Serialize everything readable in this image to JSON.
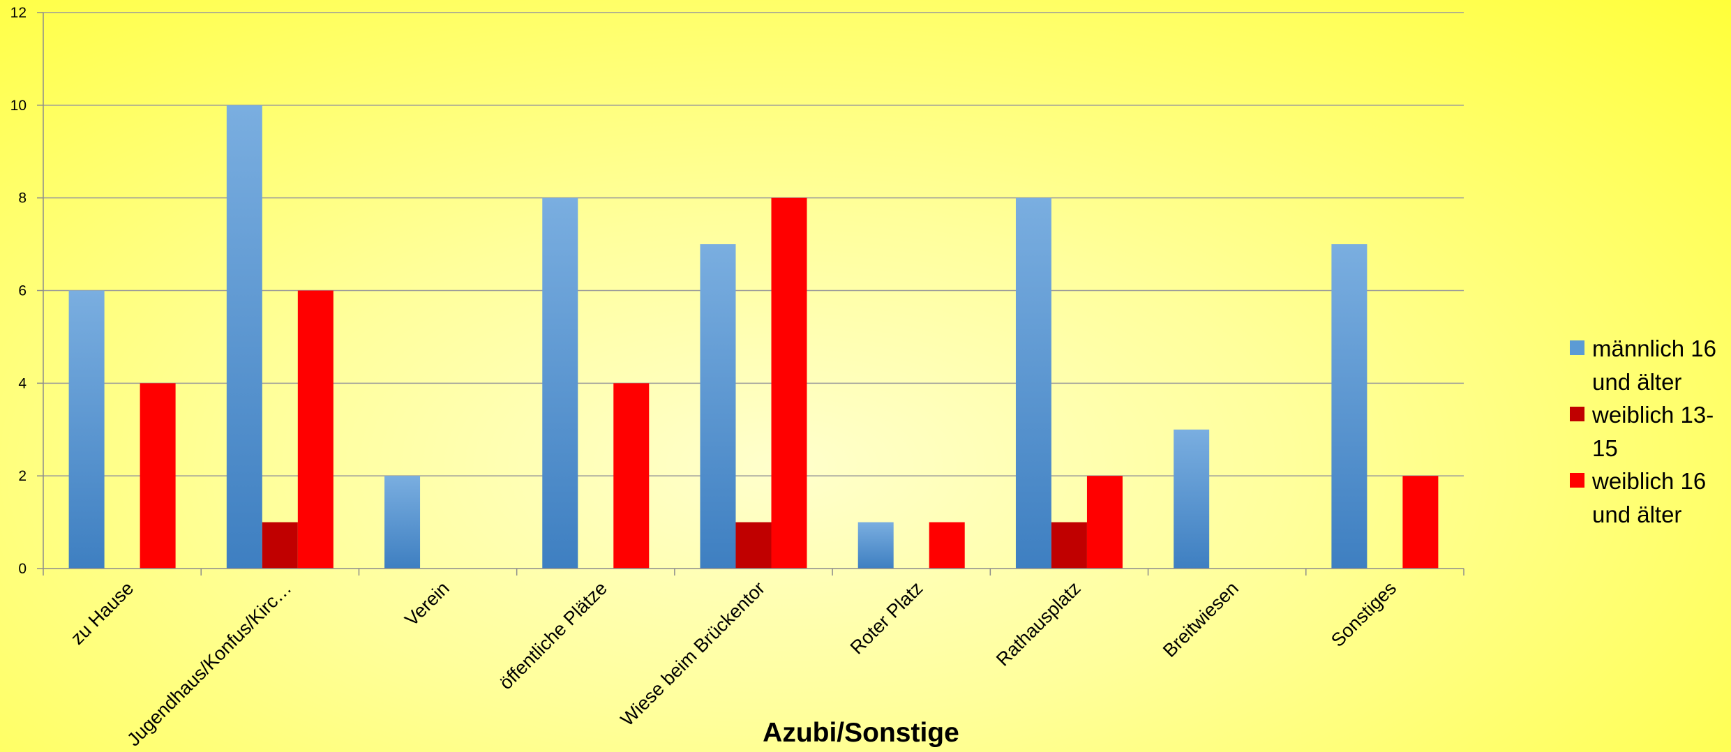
{
  "chart_data": {
    "type": "bar",
    "xlabel": "Azubi/Sonstige",
    "ylabel": "",
    "ylim": [
      0,
      12
    ],
    "yticks": [
      0,
      2,
      4,
      6,
      8,
      10,
      12
    ],
    "grid": true,
    "legend_position": "right",
    "categories": [
      "zu Hause",
      "Jugendhaus/Konfus/Kirc…",
      "Verein",
      "öffentliche Plätze",
      "Wiese beim Brückentor",
      "Roter Platz",
      "Rathausplatz",
      "Breitwiesen",
      "Sonstiges"
    ],
    "series": [
      {
        "name": "männlich 16 und älter",
        "legend_lines": [
          "männlich 16",
          "und älter"
        ],
        "color": "#5b9bd5",
        "values": [
          6,
          10,
          2,
          8,
          7,
          1,
          8,
          3,
          7
        ]
      },
      {
        "name": "weiblich 13-15",
        "legend_lines": [
          "weiblich 13-",
          "15"
        ],
        "color": "#c00000",
        "values": [
          0,
          1,
          0,
          0,
          1,
          0,
          1,
          0,
          0
        ]
      },
      {
        "name": "weiblich 16 und älter",
        "legend_lines": [
          "weiblich 16",
          "und älter"
        ],
        "color": "#ff0000",
        "values": [
          4,
          6,
          0,
          4,
          8,
          1,
          2,
          0,
          2
        ]
      }
    ]
  }
}
